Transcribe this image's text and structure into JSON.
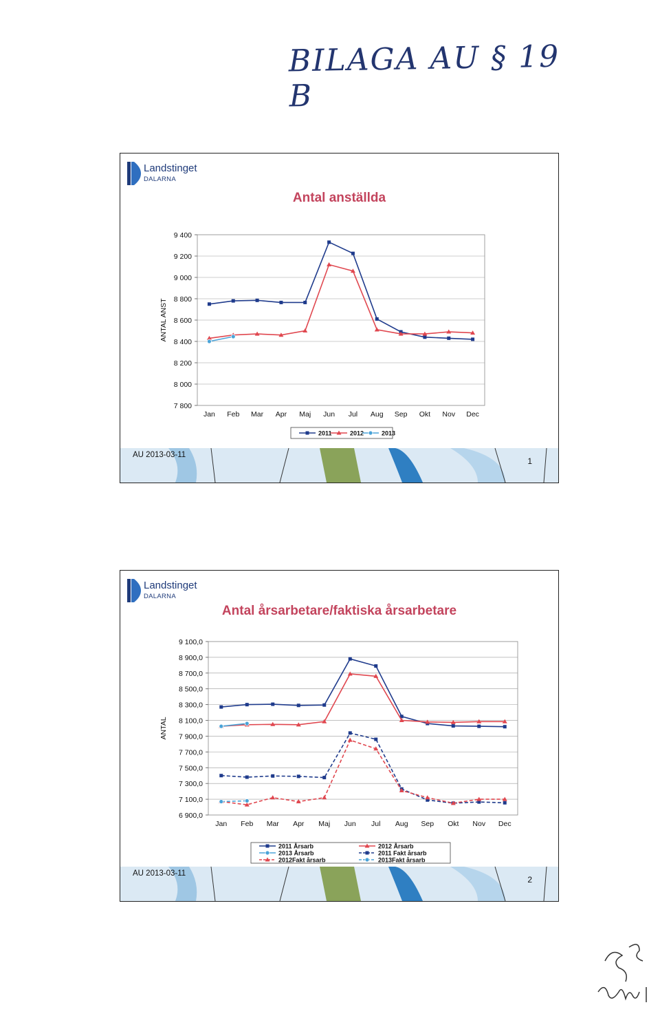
{
  "header": {
    "handwritten_note": "BILAGA AU § 19 B"
  },
  "colors": {
    "y2011": "#1f3b8c",
    "y2012": "#e0474f",
    "y2013": "#4aa3d8",
    "title": "#c3445d",
    "brand": "#1f3b7a"
  },
  "slides": [
    {
      "logo_name": "Landstinget",
      "logo_sub": "DALARNA",
      "title": "Antal anställda",
      "footer_date": "AU 2013-03-11",
      "page_number": "1"
    },
    {
      "logo_name": "Landstinget",
      "logo_sub": "DALARNA",
      "title": "Antal årsarbetare/faktiska årsarbetare",
      "footer_date": "AU 2013-03-11",
      "page_number": "2"
    }
  ],
  "chart_data": [
    {
      "type": "line",
      "title": "Antal anställda",
      "ylabel": "ANTAL ANST",
      "categories": [
        "Jan",
        "Feb",
        "Mar",
        "Apr",
        "Maj",
        "Jun",
        "Jul",
        "Aug",
        "Sep",
        "Okt",
        "Nov",
        "Dec"
      ],
      "ylim": [
        7800,
        9400
      ],
      "yticks": [
        "7 800",
        "8 000",
        "8 200",
        "8 400",
        "8 600",
        "8 800",
        "9 000",
        "9 200",
        "9 400"
      ],
      "grid": true,
      "legend_position": "bottom",
      "series": [
        {
          "name": "2011",
          "color": "#1f3b8c",
          "marker": "square",
          "dashed": false,
          "values": [
            8750,
            8780,
            8785,
            8765,
            8765,
            9330,
            9225,
            8610,
            8490,
            8440,
            8430,
            8420
          ]
        },
        {
          "name": "2012",
          "color": "#e0474f",
          "marker": "triangle",
          "dashed": false,
          "values": [
            8430,
            8460,
            8470,
            8460,
            8500,
            9120,
            9060,
            8510,
            8470,
            8470,
            8490,
            8480
          ]
        },
        {
          "name": "2013",
          "color": "#4aa3d8",
          "marker": "circle",
          "dashed": false,
          "values": [
            8400,
            8445,
            null,
            null,
            null,
            null,
            null,
            null,
            null,
            null,
            null,
            null
          ]
        }
      ]
    },
    {
      "type": "line",
      "title": "Antal årsarbetare/faktiska årsarbetare",
      "ylabel": "ANTAL",
      "categories": [
        "Jan",
        "Feb",
        "Mar",
        "Apr",
        "Maj",
        "Jun",
        "Jul",
        "Aug",
        "Sep",
        "Okt",
        "Nov",
        "Dec"
      ],
      "ylim": [
        6900,
        9100
      ],
      "yticks": [
        "6 900,0",
        "7 100,0",
        "7 300,0",
        "7 500,0",
        "7 700,0",
        "7 900,0",
        "8 100,0",
        "8 300,0",
        "8 500,0",
        "8 700,0",
        "8 900,0",
        "9 100,0"
      ],
      "grid": true,
      "legend_position": "bottom",
      "series": [
        {
          "name": "2011 Årsarb",
          "color": "#1f3b8c",
          "marker": "square",
          "dashed": false,
          "values": [
            8270,
            8300,
            8305,
            8290,
            8295,
            8880,
            8790,
            8150,
            8060,
            8030,
            8025,
            8020
          ]
        },
        {
          "name": "2012 Årsarb",
          "color": "#e0474f",
          "marker": "triangle",
          "dashed": false,
          "values": [
            8025,
            8045,
            8050,
            8045,
            8085,
            8690,
            8660,
            8100,
            8080,
            8075,
            8085,
            8085
          ]
        },
        {
          "name": "2013 Årsarb",
          "color": "#4aa3d8",
          "marker": "circle",
          "dashed": false,
          "values": [
            8025,
            8060,
            null,
            null,
            null,
            null,
            null,
            null,
            null,
            null,
            null,
            null
          ]
        },
        {
          "name": "2011 Fakt årsarb",
          "color": "#1f3b8c",
          "marker": "square",
          "dashed": true,
          "values": [
            7400,
            7380,
            7395,
            7390,
            7375,
            7940,
            7860,
            7230,
            7090,
            7050,
            7065,
            7055
          ]
        },
        {
          "name": "2012Fakt årsarb",
          "color": "#e0474f",
          "marker": "triangle",
          "dashed": true,
          "values": [
            7070,
            7030,
            7120,
            7070,
            7120,
            7850,
            7740,
            7210,
            7120,
            7050,
            7100,
            7100
          ]
        },
        {
          "name": "2013Fakt årsarb",
          "color": "#4aa3d8",
          "marker": "circle",
          "dashed": true,
          "values": [
            7070,
            7080,
            null,
            null,
            null,
            null,
            null,
            null,
            null,
            null,
            null,
            null
          ]
        }
      ]
    }
  ]
}
